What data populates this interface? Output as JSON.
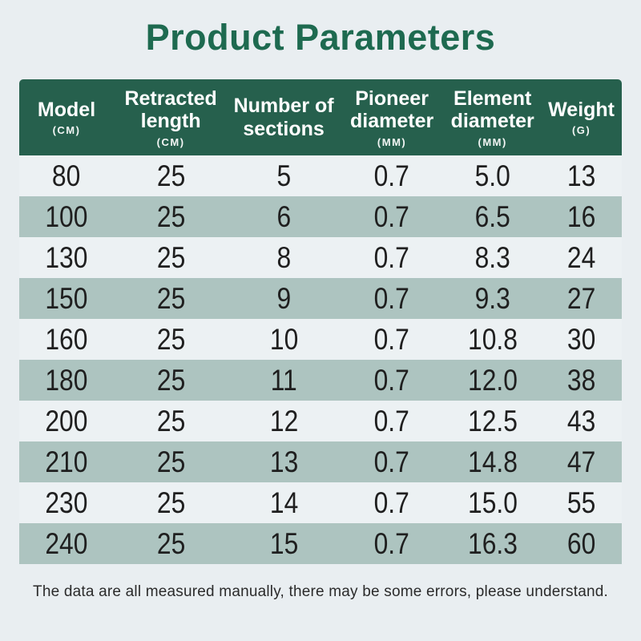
{
  "title": "Product Parameters",
  "table": {
    "columns": [
      {
        "label": "Model",
        "unit": "(CM)"
      },
      {
        "label": "Retracted length",
        "unit": "(CM)"
      },
      {
        "label": "Number of sections",
        "unit": ""
      },
      {
        "label": "Pioneer diameter",
        "unit": "(MM)"
      },
      {
        "label": "Element diameter",
        "unit": "(MM)"
      },
      {
        "label": "Weight",
        "unit": "(G)"
      }
    ],
    "rows": [
      [
        "80",
        "25",
        "5",
        "0.7",
        "5.0",
        "13"
      ],
      [
        "100",
        "25",
        "6",
        "0.7",
        "6.5",
        "16"
      ],
      [
        "130",
        "25",
        "8",
        "0.7",
        "8.3",
        "24"
      ],
      [
        "150",
        "25",
        "9",
        "0.7",
        "9.3",
        "27"
      ],
      [
        "160",
        "25",
        "10",
        "0.7",
        "10.8",
        "30"
      ],
      [
        "180",
        "25",
        "11",
        "0.7",
        "12.0",
        "38"
      ],
      [
        "200",
        "25",
        "12",
        "0.7",
        "12.5",
        "43"
      ],
      [
        "210",
        "25",
        "13",
        "0.7",
        "14.8",
        "47"
      ],
      [
        "230",
        "25",
        "14",
        "0.7",
        "15.0",
        "55"
      ],
      [
        "240",
        "25",
        "15",
        "0.7",
        "16.3",
        "60"
      ]
    ]
  },
  "footer": "The data are all measured manually, there may be some errors, please understand.",
  "colors": {
    "background": "#e9eef1",
    "title_green": "#1e6a50",
    "header_green": "#26604d",
    "header_text": "#ffffff",
    "row_shaded": "#adc4c0",
    "row_light": "#ecf1f3",
    "row_text": "#1f1f1f",
    "footer_text": "#2b2b2b"
  }
}
